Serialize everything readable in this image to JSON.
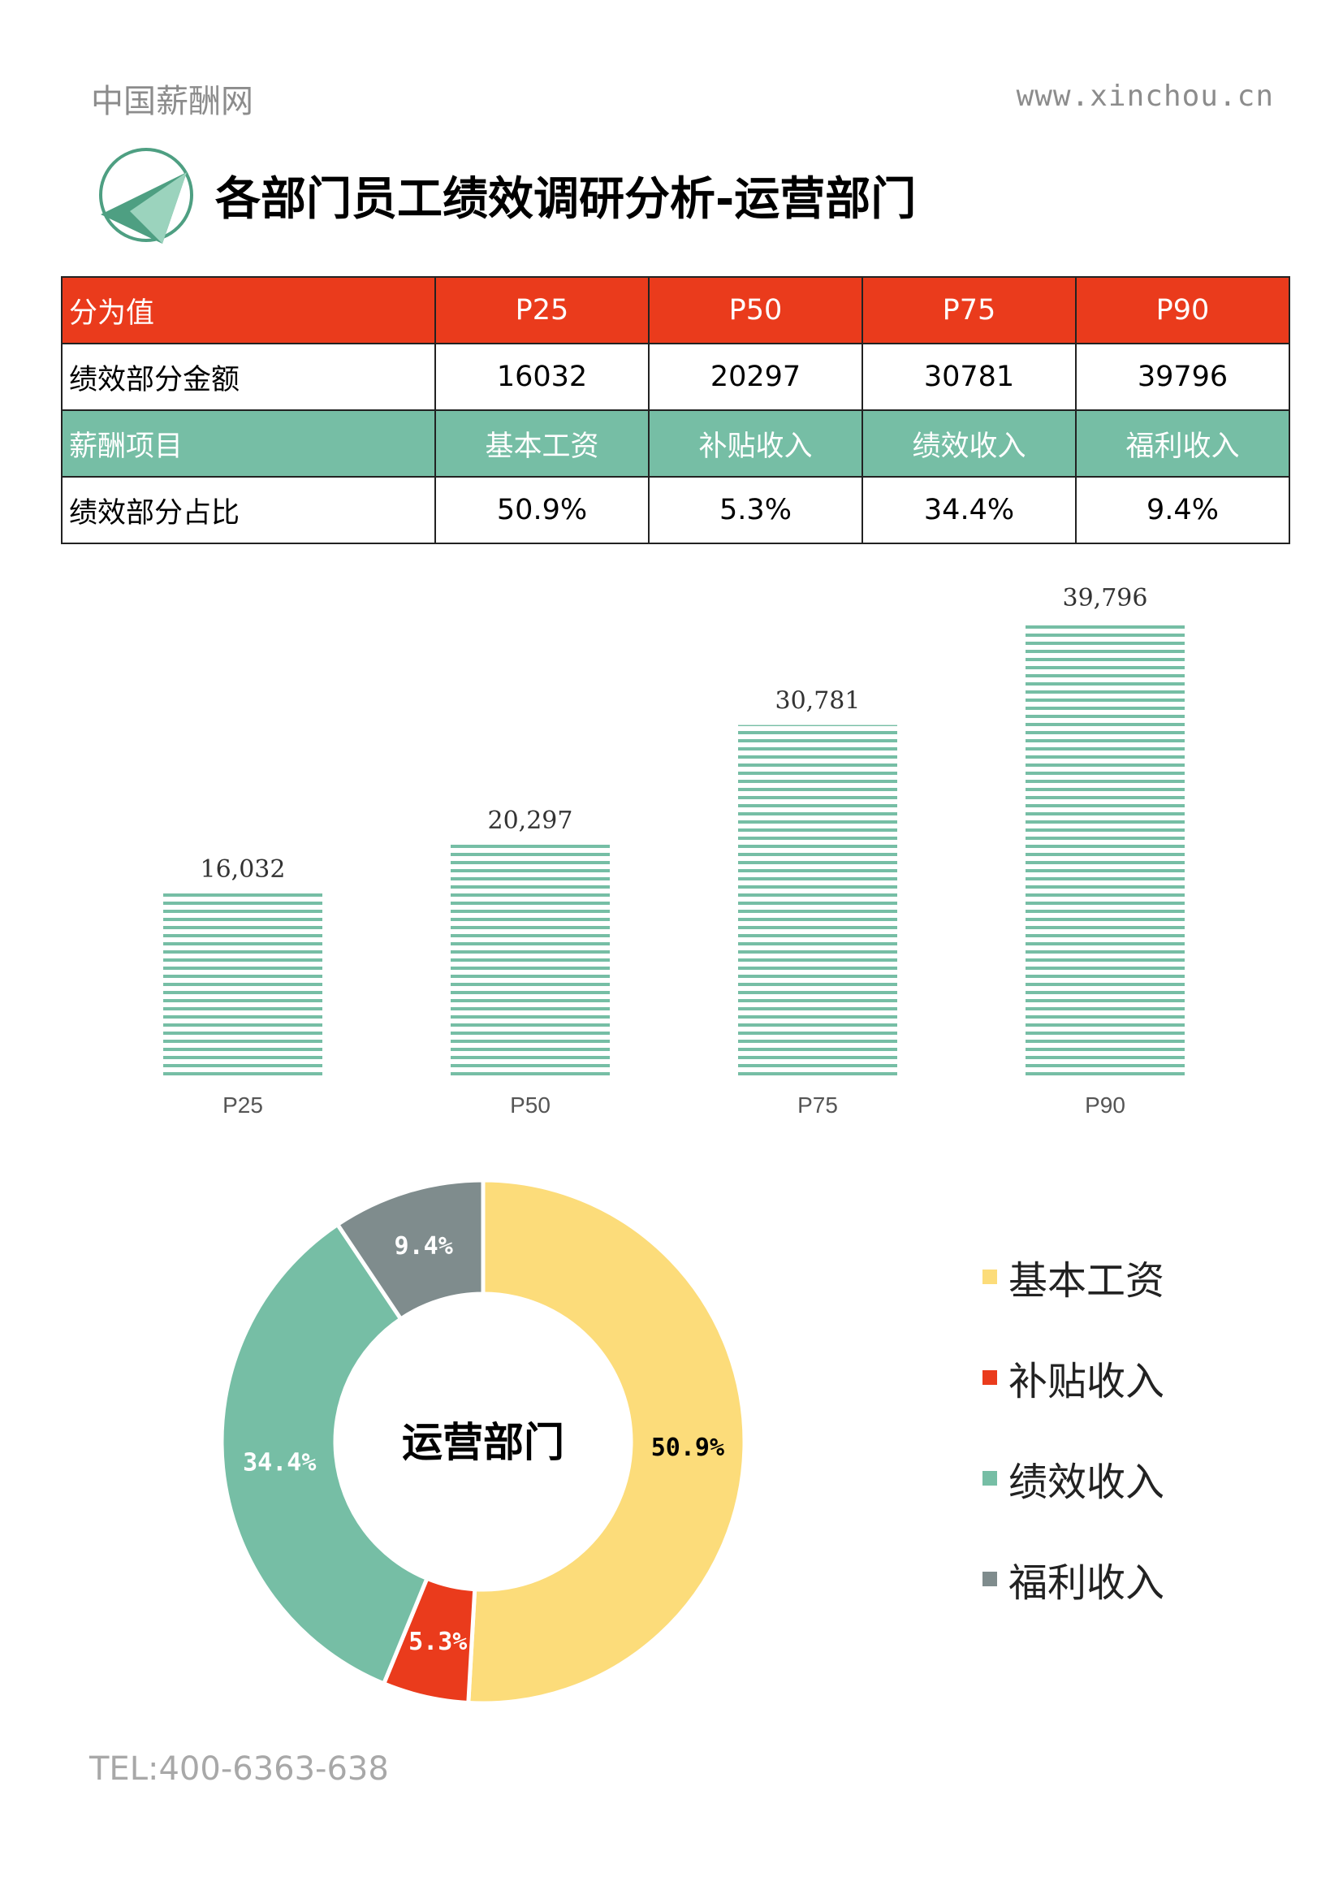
{
  "header": {
    "brand": "中国薪酬网",
    "url": "www.xinchou.cn"
  },
  "title": "各部门员工绩效调研分析-运营部门",
  "table": {
    "rows": [
      {
        "label": "分为值",
        "cells": [
          "P25",
          "P50",
          "P75",
          "P90"
        ]
      },
      {
        "label": "绩效部分金额",
        "cells": [
          "16032",
          "20297",
          "30781",
          "39796"
        ]
      },
      {
        "label": "薪酬项目",
        "cells": [
          "基本工资",
          "补贴收入",
          "绩效收入",
          "福利收入"
        ]
      },
      {
        "label": "绩效部分占比",
        "cells": [
          "50.9%",
          "5.3%",
          "34.4%",
          "9.4%"
        ]
      }
    ]
  },
  "colors": {
    "red": "#ea3b1c",
    "green": "#76bea5",
    "yellow": "#fcdc7a",
    "gray": "#7f8c8d"
  },
  "chart_data": [
    {
      "type": "bar",
      "categories": [
        "P25",
        "P50",
        "P75",
        "P90"
      ],
      "values": [
        16032,
        20297,
        30781,
        39796
      ],
      "data_labels": [
        "16,032",
        "20,297",
        "30,781",
        "39,796"
      ],
      "title": "",
      "xlabel": "",
      "ylabel": "",
      "ylim": [
        0,
        42000
      ],
      "grid": false,
      "bar_color": "#76bea5",
      "bar_pattern": "horizontal-stripes"
    },
    {
      "type": "pie",
      "donut": true,
      "center_label": "运营部门",
      "labels": [
        "基本工资",
        "补贴收入",
        "绩效收入",
        "福利收入"
      ],
      "values": [
        50.9,
        5.3,
        34.4,
        9.4
      ],
      "data_labels": [
        "50.9%",
        "5.3%",
        "34.4%",
        "9.4%"
      ],
      "colors": [
        "#fcdc7a",
        "#ea3b1c",
        "#76bea5",
        "#7f8c8d"
      ],
      "label_colors": [
        "#000000",
        "#ffffff",
        "#ffffff",
        "#ffffff"
      ],
      "legend": "right"
    }
  ],
  "footer": {
    "tel": "TEL:400-6363-638"
  }
}
